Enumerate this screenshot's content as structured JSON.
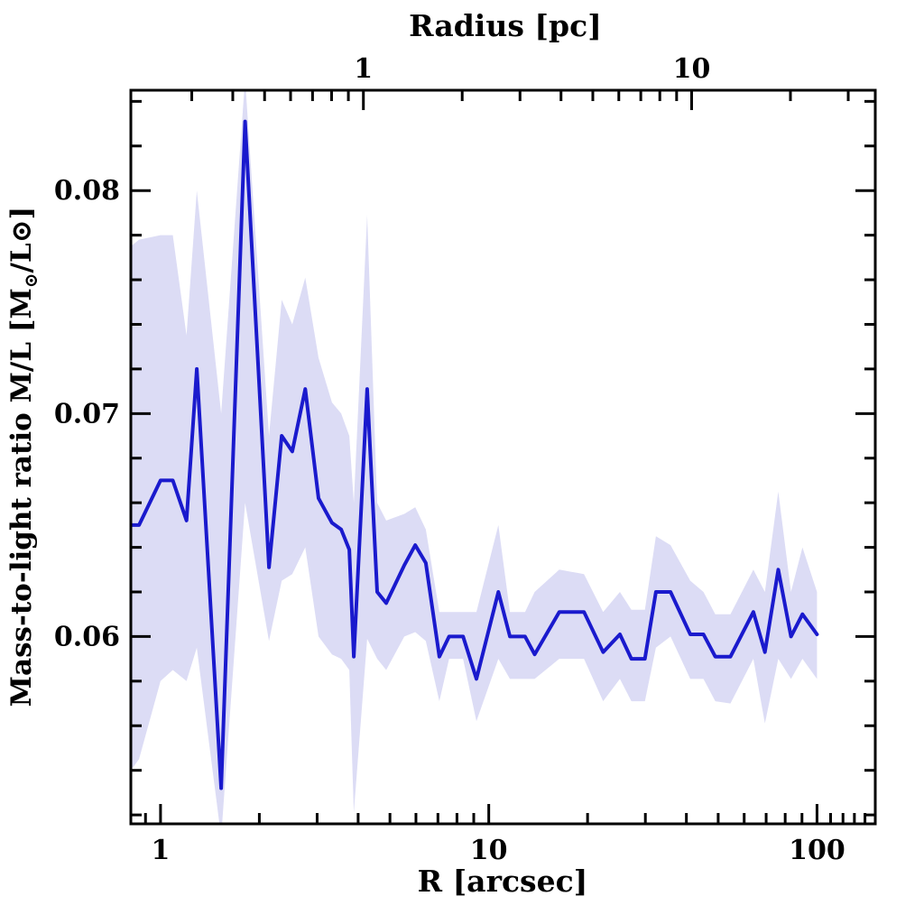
{
  "figure": {
    "background": "#ffffff",
    "top_axis_title": "Radius [pc]",
    "bottom_axis_title": "R [arcsec]",
    "y_axis_title_parts": {
      "prefix": "Mass-to-light ratio M/L [M",
      "sun_subscript": "⊙",
      "mid": "/L",
      "sun2": "⊙",
      "suffix": "]"
    }
  },
  "chart_data": {
    "type": "line",
    "title": "",
    "xlabel": "R [arcsec]",
    "top_xlabel": "Radius [pc]",
    "ylabel": "Mass-to-light ratio M/L [M⊙/L⊙]",
    "x_scale": "log",
    "y_scale": "linear",
    "xlim": [
      0.812,
      150.5
    ],
    "ylim": [
      0.0516,
      0.0845
    ],
    "grid": false,
    "legend": "none",
    "pc_to_arcsec": 4.15,
    "colors": {
      "line": "#1a1acd",
      "band": "#dcdcf5",
      "axis": "#000000"
    },
    "series_name": "mass-to-light ratio profile",
    "band_name": "uncertainty band",
    "x": [
      0.812,
      0.86,
      1.0,
      1.09,
      1.2,
      1.29,
      1.53,
      1.81,
      2.14,
      2.34,
      2.52,
      2.76,
      3.03,
      3.33,
      3.55,
      3.76,
      3.88,
      4.26,
      4.57,
      4.87,
      5.53,
      5.97,
      6.43,
      7.07,
      7.57,
      8.35,
      9.17,
      10.7,
      11.6,
      12.9,
      13.8,
      16.4,
      19.5,
      22.3,
      25.1,
      27.2,
      29.9,
      32.3,
      35.8,
      41.1,
      45.1,
      49.0,
      54.5,
      64.0,
      69.4,
      76.2,
      83.3,
      90.3,
      100
    ],
    "y": [
      0.065,
      0.065,
      0.067,
      0.067,
      0.0652,
      0.072,
      0.0532,
      0.0831,
      0.0631,
      0.069,
      0.0683,
      0.0711,
      0.0662,
      0.0651,
      0.0648,
      0.0639,
      0.0591,
      0.0711,
      0.062,
      0.0615,
      0.0632,
      0.0641,
      0.0633,
      0.0591,
      0.06,
      0.06,
      0.0581,
      0.062,
      0.06,
      0.06,
      0.0592,
      0.0611,
      0.0611,
      0.0593,
      0.0601,
      0.059,
      0.059,
      0.062,
      0.062,
      0.0601,
      0.0601,
      0.0591,
      0.0591,
      0.0611,
      0.0593,
      0.063,
      0.06,
      0.061,
      0.0601
    ],
    "band_lo": [
      0.054,
      0.0545,
      0.058,
      0.0585,
      0.058,
      0.0595,
      0.051,
      0.066,
      0.0598,
      0.0625,
      0.0628,
      0.064,
      0.06,
      0.0592,
      0.059,
      0.0585,
      0.0521,
      0.0599,
      0.059,
      0.0585,
      0.06,
      0.0602,
      0.0598,
      0.0571,
      0.059,
      0.059,
      0.0562,
      0.059,
      0.0581,
      0.0581,
      0.0581,
      0.059,
      0.059,
      0.0571,
      0.0581,
      0.0571,
      0.0571,
      0.0595,
      0.06,
      0.0581,
      0.0581,
      0.0571,
      0.057,
      0.059,
      0.0561,
      0.059,
      0.0581,
      0.059,
      0.0581
    ],
    "band_hi": [
      0.0775,
      0.0778,
      0.078,
      0.078,
      0.0735,
      0.08,
      0.07,
      0.085,
      0.069,
      0.0751,
      0.074,
      0.0761,
      0.0725,
      0.0705,
      0.07,
      0.069,
      0.066,
      0.0789,
      0.066,
      0.0652,
      0.0655,
      0.0658,
      0.0648,
      0.0611,
      0.0611,
      0.0611,
      0.0611,
      0.065,
      0.0611,
      0.0611,
      0.062,
      0.063,
      0.0628,
      0.0611,
      0.062,
      0.0612,
      0.0612,
      0.0645,
      0.0641,
      0.0625,
      0.062,
      0.061,
      0.061,
      0.063,
      0.062,
      0.0665,
      0.062,
      0.064,
      0.062
    ],
    "ticks": {
      "bottom_major": [
        {
          "v": 1,
          "label": "1"
        },
        {
          "v": 10,
          "label": "10"
        },
        {
          "v": 100,
          "label": "100"
        }
      ],
      "bottom_minor": [
        0.9,
        2,
        3,
        4,
        5,
        6,
        7,
        8,
        9,
        20,
        30,
        40,
        50,
        60,
        70,
        80,
        90,
        110,
        120,
        130,
        140,
        150
      ],
      "top_major": [
        {
          "v": 1,
          "label": "1"
        },
        {
          "v": 10,
          "label": "10"
        }
      ],
      "top_minor": [
        0.3,
        0.4,
        0.5,
        0.6,
        0.7,
        0.8,
        0.9,
        2,
        3,
        4,
        5,
        6,
        7,
        8,
        9,
        20,
        30
      ],
      "y_major": [
        {
          "v": 0.06,
          "label": "0.06"
        },
        {
          "v": 0.07,
          "label": "0.07"
        },
        {
          "v": 0.08,
          "label": "0.08"
        }
      ],
      "y_minor": [
        0.052,
        0.054,
        0.056,
        0.058,
        0.062,
        0.064,
        0.066,
        0.068,
        0.072,
        0.074,
        0.076,
        0.078,
        0.082,
        0.084
      ]
    }
  }
}
